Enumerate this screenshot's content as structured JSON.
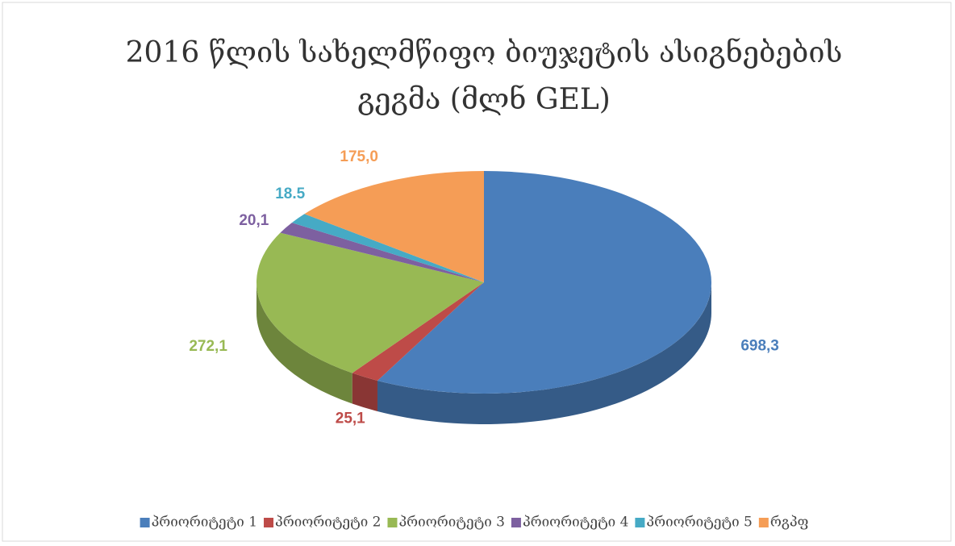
{
  "chart_data": {
    "type": "pie3d",
    "title": "2016 წლის სახელმწიფო ბიუჯეტის ასიგნებების გეგმა (მლნ GEL)",
    "categories": [
      "პრიორიტეტი 1",
      "პრიორიტეტი 2",
      "პრიორიტეტი 3",
      "პრიორიტეტი 4",
      "პრიორიტეტი 5",
      "რგპფ"
    ],
    "values": [
      698.3,
      25.1,
      272.1,
      20.1,
      18.5,
      175.0
    ],
    "value_labels": [
      "698,3",
      "25,1",
      "272,1",
      "20,1",
      "18.5",
      "175,0"
    ],
    "colors": [
      "#4a7ebb",
      "#be4b48",
      "#98b954",
      "#7d60a0",
      "#46aac5",
      "#f59d56"
    ],
    "legend": "bottom"
  }
}
